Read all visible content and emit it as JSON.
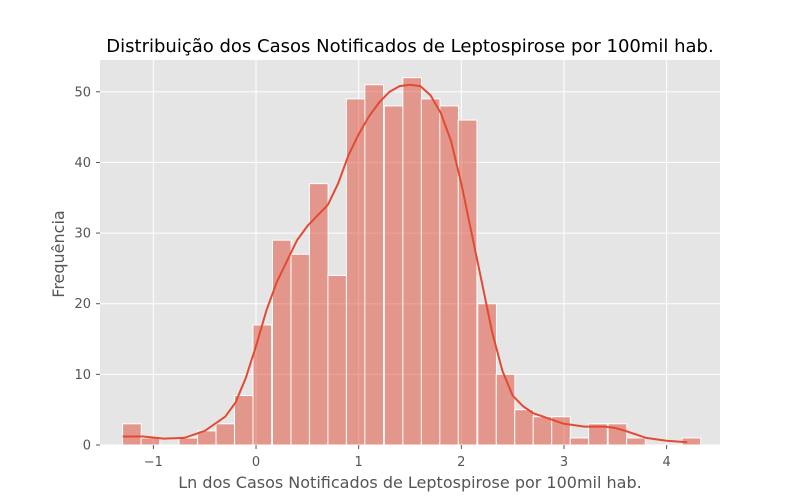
{
  "chart_data": {
    "type": "bar",
    "title": "Distribuição dos Casos Notificados de Leptospirose por 100mil hab.",
    "xlabel": "Ln dos Casos Notificados de Leptospirose por 100mil hab.",
    "ylabel": "Frequência",
    "xlim": [
      -1.52,
      4.52
    ],
    "ylim": [
      0,
      54.5
    ],
    "grid": true,
    "legend": "none",
    "x_ticks": [
      -1,
      0,
      1,
      2,
      3,
      4
    ],
    "x_tick_labels": [
      "−1",
      "0",
      "1",
      "2",
      "3",
      "4"
    ],
    "y_ticks": [
      0,
      10,
      20,
      30,
      40,
      50
    ],
    "y_tick_labels": [
      "0",
      "10",
      "20",
      "30",
      "40",
      "50"
    ],
    "bin_start": -1.3,
    "bin_width": 0.182,
    "bins": [
      {
        "x": -1.3,
        "count": 3
      },
      {
        "x": -1.12,
        "count": 1
      },
      {
        "x": -0.94,
        "count": 0
      },
      {
        "x": -0.75,
        "count": 1
      },
      {
        "x": -0.57,
        "count": 2
      },
      {
        "x": -0.39,
        "count": 3
      },
      {
        "x": -0.21,
        "count": 7
      },
      {
        "x": -0.03,
        "count": 17
      },
      {
        "x": 0.16,
        "count": 29
      },
      {
        "x": 0.34,
        "count": 27
      },
      {
        "x": 0.52,
        "count": 37
      },
      {
        "x": 0.7,
        "count": 24
      },
      {
        "x": 0.88,
        "count": 49
      },
      {
        "x": 1.06,
        "count": 51
      },
      {
        "x": 1.25,
        "count": 48
      },
      {
        "x": 1.43,
        "count": 52
      },
      {
        "x": 1.61,
        "count": 49
      },
      {
        "x": 1.79,
        "count": 48
      },
      {
        "x": 1.97,
        "count": 46
      },
      {
        "x": 2.16,
        "count": 20
      },
      {
        "x": 2.34,
        "count": 10
      },
      {
        "x": 2.52,
        "count": 5
      },
      {
        "x": 2.7,
        "count": 4
      },
      {
        "x": 2.88,
        "count": 4
      },
      {
        "x": 3.06,
        "count": 1
      },
      {
        "x": 3.24,
        "count": 3
      },
      {
        "x": 3.43,
        "count": 3
      },
      {
        "x": 3.61,
        "count": 1
      },
      {
        "x": 3.79,
        "count": 0
      },
      {
        "x": 3.97,
        "count": 0
      },
      {
        "x": 4.15,
        "count": 1
      }
    ],
    "kde": [
      [
        -1.3,
        1.2
      ],
      [
        -1.1,
        1.2
      ],
      [
        -0.9,
        0.9
      ],
      [
        -0.7,
        1.0
      ],
      [
        -0.5,
        2.0
      ],
      [
        -0.3,
        4.0
      ],
      [
        -0.2,
        6.0
      ],
      [
        -0.1,
        9.5
      ],
      [
        0.0,
        14.0
      ],
      [
        0.1,
        19.0
      ],
      [
        0.2,
        23.0
      ],
      [
        0.3,
        26.0
      ],
      [
        0.4,
        29.0
      ],
      [
        0.5,
        31.0
      ],
      [
        0.6,
        32.5
      ],
      [
        0.7,
        34.0
      ],
      [
        0.8,
        37.0
      ],
      [
        0.9,
        41.0
      ],
      [
        1.0,
        44.0
      ],
      [
        1.1,
        46.5
      ],
      [
        1.2,
        48.5
      ],
      [
        1.3,
        50.0
      ],
      [
        1.4,
        50.8
      ],
      [
        1.5,
        51.0
      ],
      [
        1.6,
        50.8
      ],
      [
        1.7,
        49.5
      ],
      [
        1.8,
        47.0
      ],
      [
        1.9,
        43.0
      ],
      [
        2.0,
        37.0
      ],
      [
        2.1,
        30.0
      ],
      [
        2.2,
        23.0
      ],
      [
        2.3,
        16.0
      ],
      [
        2.4,
        10.5
      ],
      [
        2.5,
        7.0
      ],
      [
        2.6,
        5.5
      ],
      [
        2.7,
        4.5
      ],
      [
        2.8,
        4.0
      ],
      [
        2.9,
        3.5
      ],
      [
        3.0,
        3.0
      ],
      [
        3.2,
        2.6
      ],
      [
        3.4,
        2.6
      ],
      [
        3.5,
        2.4
      ],
      [
        3.6,
        2.0
      ],
      [
        3.8,
        1.0
      ],
      [
        4.0,
        0.6
      ],
      [
        4.2,
        0.4
      ]
    ],
    "colors": {
      "background": "#e5e5e5",
      "bar_fill": "#e24a33",
      "bar_fill_opacity": 0.5,
      "bar_edge": "#ffffff",
      "kde_line": "#e24a33",
      "grid": "#ffffff"
    }
  }
}
